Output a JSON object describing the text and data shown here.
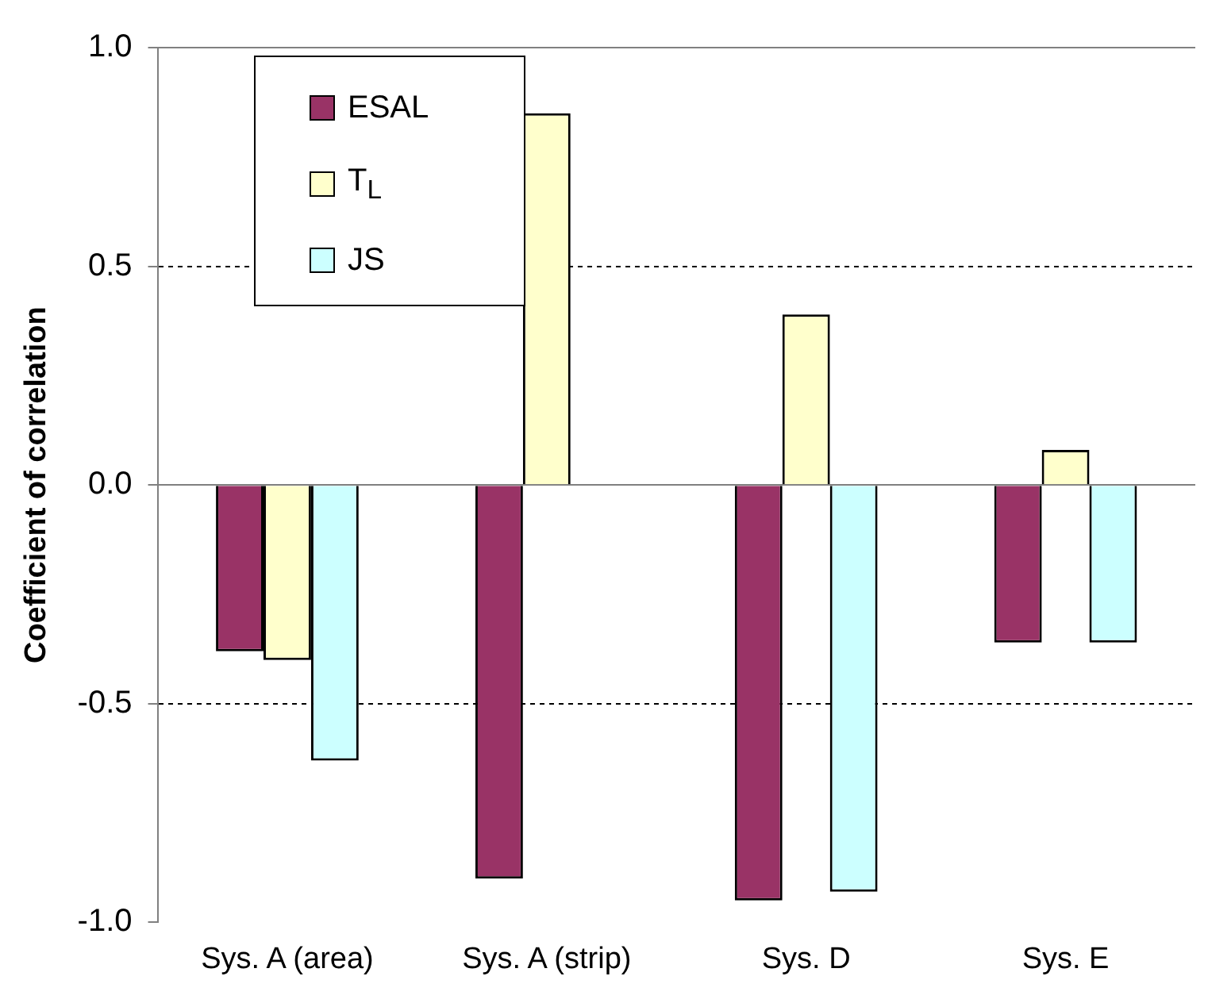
{
  "chart_data": {
    "type": "bar",
    "ylabel": "Coefficient of correlation",
    "categories": [
      "Sys. A (area)",
      "Sys. A (strip)",
      "Sys. D",
      "Sys. E"
    ],
    "series": [
      {
        "name": "ESAL",
        "color": "#993366",
        "values": [
          -0.38,
          -0.9,
          -0.95,
          -0.36
        ]
      },
      {
        "name": "T$_{L}$",
        "color": "#ffffcc",
        "values": [
          -0.4,
          0.85,
          0.39,
          0.08
        ]
      },
      {
        "name": "JS",
        "color": "#ccffff",
        "values": [
          -0.63,
          null,
          -0.93,
          -0.36
        ]
      }
    ],
    "ylim": [
      -1,
      1
    ],
    "yticks": [
      {
        "value": -1,
        "label": "-1.0"
      },
      -0.5,
      {
        "value": 0,
        "label": "0.0"
      },
      0.5,
      {
        "value": 1,
        "label": "1.0"
      }
    ],
    "grid": "y",
    "legend": "top left"
  }
}
